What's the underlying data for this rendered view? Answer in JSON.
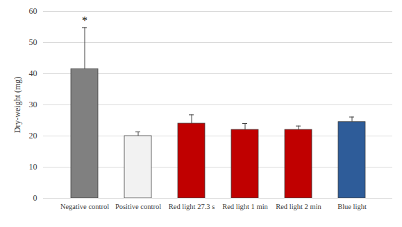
{
  "chart_data": {
    "type": "bar",
    "categories": [
      "Negative control",
      "Positive control",
      "Red light 27.3 s",
      "Red light 1 min",
      "Red light 2 min",
      "Blue light"
    ],
    "values": [
      41.5,
      20,
      24,
      22,
      22,
      24.5
    ],
    "errors": [
      13.3,
      1.3,
      2.8,
      2,
      1.2,
      1.6
    ],
    "colors": [
      "#808080",
      "#f2f2f2",
      "#c00000",
      "#c00000",
      "#c00000",
      "#2e5c99"
    ],
    "ylabel": "Dry-weight (mg)",
    "ylim": [
      0,
      60
    ],
    "yticks": [
      0,
      10,
      20,
      30,
      40,
      50,
      60
    ],
    "grid": true,
    "annotations": [
      {
        "text": "*",
        "category": "Negative control"
      }
    ]
  }
}
